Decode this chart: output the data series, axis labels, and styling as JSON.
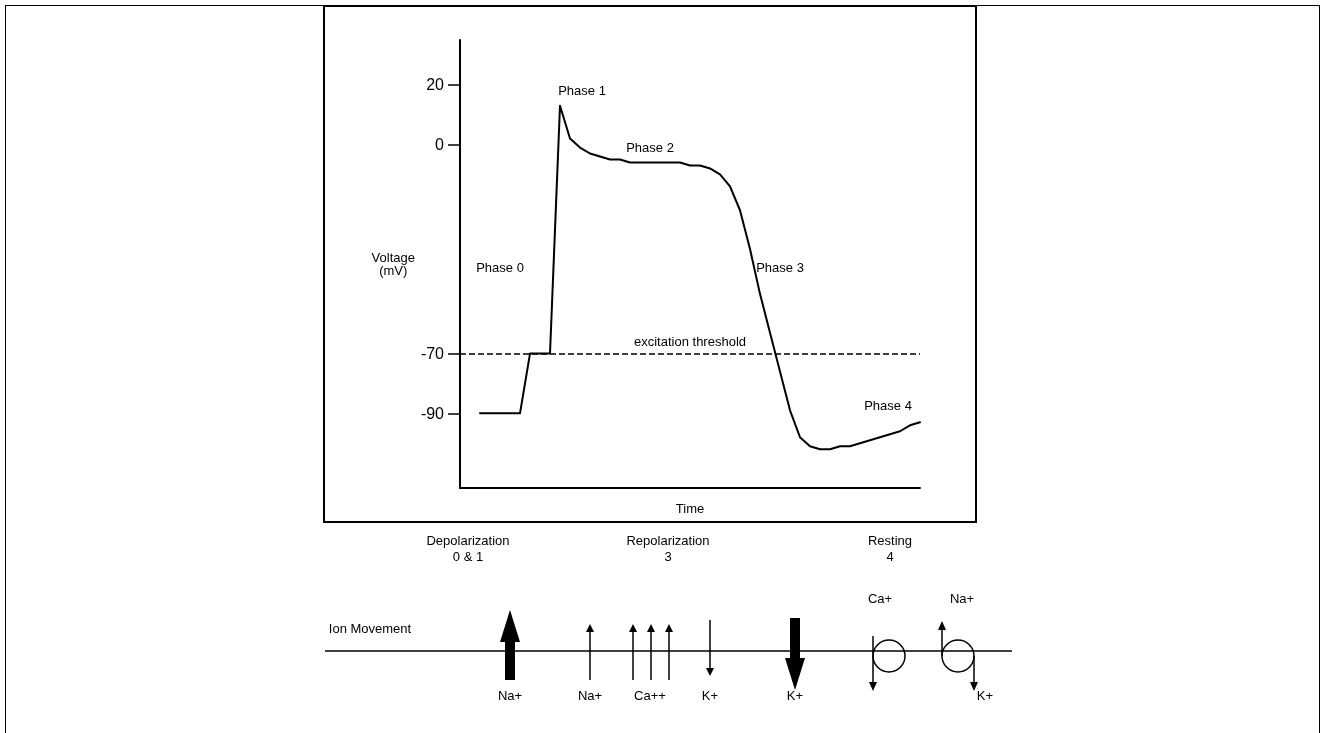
{
  "chart_data": {
    "type": "line",
    "xlabel": "Time",
    "ylabel": "Voltage\n(mV)",
    "categories": [
      null,
      null,
      null,
      null,
      null,
      null,
      null,
      null,
      null,
      null,
      null,
      null,
      null,
      null,
      null,
      null,
      null,
      null,
      null,
      null,
      null,
      null,
      null,
      null,
      null,
      null,
      null,
      null,
      null,
      null,
      null,
      null,
      null,
      null,
      null,
      null,
      null,
      null,
      null,
      null,
      null,
      null,
      null,
      null,
      null,
      null,
      null
    ],
    "series": [
      {
        "color": "#000000",
        "values": [
          null,
          null,
          -90,
          -90,
          -90,
          -90,
          -90,
          -70,
          -70,
          -70,
          13,
          2,
          -1,
          -3,
          -4,
          -5,
          -5,
          -6,
          -6,
          -6,
          -6,
          -6,
          -6,
          -7,
          -7,
          -8,
          -10,
          -14,
          -22,
          -35,
          -50,
          -63,
          -76,
          -89,
          -98,
          -101,
          -102,
          -102,
          -101,
          -101,
          -100,
          -99,
          -98,
          -97,
          -96,
          -94,
          -93
        ]
      }
    ],
    "ylim": [
      -115,
      35
    ],
    "yticks": [
      20,
      0,
      -70,
      -90
    ],
    "tick_labels": "y",
    "grid": false,
    "marker": "none",
    "line_style": "solid",
    "ref_lines": [
      {
        "axis": "y",
        "value": -70,
        "label": "excitation threshold",
        "color": "#000000",
        "line_style": "dashed"
      }
    ],
    "annotations": [
      "Phase 1",
      "Phase 2",
      "Phase 0",
      "Phase 3",
      "Phase 4",
      "Depolarization\n0 & 1",
      "Repolarization\n3",
      "Resting\n4",
      "Ion Movement",
      "Ca+",
      "Na+",
      "Na+",
      "Na+",
      "Ca++",
      "K+",
      "K+",
      "K+"
    ]
  }
}
